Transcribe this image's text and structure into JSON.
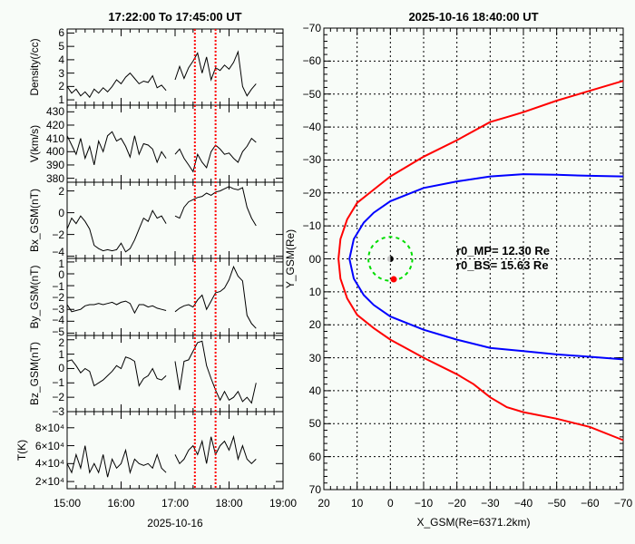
{
  "chart_data": [
    {
      "type": "line",
      "title": "17:22:00  To  17:45:00  UT",
      "xlabel": "2025-10-16",
      "x_tick_labels": [
        "15:00",
        "16:00",
        "17:00",
        "18:00",
        "19:00"
      ],
      "xlim": [
        "15:00",
        "19:00"
      ],
      "x": [
        "15:00",
        "15:05",
        "15:10",
        "15:15",
        "15:20",
        "15:25",
        "15:30",
        "15:35",
        "15:40",
        "15:45",
        "15:50",
        "15:55",
        "16:00",
        "16:05",
        "16:10",
        "16:15",
        "16:20",
        "16:25",
        "16:30",
        "16:35",
        "16:40",
        "16:45",
        "16:50",
        "16:55",
        "17:00",
        "17:05",
        "17:10",
        "17:15",
        "17:20",
        "17:25",
        "17:30",
        "17:35",
        "17:40",
        "17:45",
        "17:50",
        "17:55",
        "18:00",
        "18:05",
        "18:10",
        "18:15",
        "18:20",
        "18:25",
        "18:30"
      ],
      "markers": {
        "times": [
          "17:22",
          "17:45"
        ],
        "color": "#ff0000",
        "style": "dotted"
      },
      "panels": [
        {
          "ylabel": "Density(/cc)",
          "ylim": [
            0.6,
            6.3
          ],
          "ticks": [
            1,
            2,
            3,
            4,
            5,
            6
          ],
          "tick_labels": [
            "1",
            "2",
            "3",
            "4",
            "5",
            "6"
          ],
          "values": [
            2.0,
            1.5,
            1.8,
            1.3,
            1.6,
            1.2,
            1.8,
            1.5,
            1.9,
            1.6,
            2.0,
            2.5,
            2.2,
            2.7,
            3.0,
            2.6,
            2.2,
            2.4,
            2.3,
            2.8,
            1.9,
            2.1,
            1.7,
            null,
            2.5,
            3.5,
            2.6,
            3.4,
            3.9,
            4.5,
            3.0,
            4.2,
            2.5,
            3.4,
            3.2,
            3.6,
            3.3,
            3.8,
            4.6,
            2.0,
            1.3,
            1.8,
            2.2
          ]
        },
        {
          "ylabel": "V(km/s)",
          "ylim": [
            377,
            435
          ],
          "ticks": [
            380,
            390,
            400,
            410,
            420,
            430
          ],
          "tick_labels": [
            "380",
            "390",
            "400",
            "410",
            "420",
            "430"
          ],
          "values": [
            412,
            405,
            398,
            410,
            395,
            404,
            390,
            408,
            400,
            412,
            415,
            408,
            410,
            404,
            396,
            412,
            398,
            406,
            405,
            402,
            392,
            400,
            395,
            null,
            398,
            402,
            395,
            390,
            385,
            398,
            392,
            388,
            400,
            405,
            402,
            398,
            399,
            395,
            392,
            400,
            404,
            410,
            407
          ]
        },
        {
          "ylabel": "Bx_GSM(nT)",
          "ylim": [
            -4.2,
            2.8
          ],
          "ticks": [
            -4,
            -2,
            0,
            2
          ],
          "tick_labels": [
            "−4",
            "−2",
            "0",
            "2"
          ],
          "values": [
            -1.5,
            -0.5,
            -1.0,
            -0.3,
            -0.8,
            -1.5,
            -3.0,
            -3.3,
            -3.5,
            -3.4,
            -3.5,
            -3.4,
            -2.8,
            -3.6,
            -3.3,
            -2.5,
            -1.5,
            -0.5,
            -0.8,
            0.2,
            -0.5,
            -0.3,
            -1.0,
            null,
            -0.3,
            -0.5,
            0.5,
            1.0,
            1.2,
            1.4,
            1.5,
            1.8,
            1.6,
            1.9,
            2.0,
            2.2,
            2.4,
            2.2,
            2.1,
            2.3,
            0.5,
            -0.5,
            -1.2
          ]
        },
        {
          "ylabel": "By_GSM(nT)",
          "ylim": [
            -5.2,
            1.3
          ],
          "ticks": [
            -5,
            -4,
            -3,
            -2,
            -1,
            0,
            1
          ],
          "tick_labels": [
            "−5",
            "−4",
            "−3",
            "−2",
            "−1",
            "0",
            "1"
          ],
          "values": [
            -2.6,
            -3.2,
            -3.1,
            -3.0,
            -2.7,
            -2.6,
            -2.6,
            -2.5,
            -2.6,
            -2.5,
            -2.4,
            -2.6,
            -2.4,
            -2.3,
            -2.5,
            -3.3,
            -2.6,
            -2.6,
            -2.8,
            -2.7,
            -2.9,
            -3.0,
            -3.1,
            null,
            -3.2,
            -2.9,
            -2.7,
            -2.6,
            -2.8,
            -2.2,
            -1.8,
            -3.0,
            -2.3,
            -1.6,
            -1.5,
            -1.2,
            -0.5,
            0.6,
            -0.2,
            -0.6,
            -3.5,
            -4.2,
            -4.6
          ]
        },
        {
          "ylabel": "Bz_GSM(nT)",
          "ylim": [
            -3.0,
            2.3
          ],
          "ticks": [
            -3,
            -2,
            -1,
            0,
            1,
            2
          ],
          "tick_labels": [
            "−3",
            "−2",
            "−1",
            "0",
            "1",
            "2"
          ],
          "values": [
            0.5,
            0.6,
            0.2,
            -0.3,
            0.0,
            -0.2,
            -1.2,
            -1.0,
            -0.8,
            -0.5,
            -0.2,
            0.2,
            0.0,
            0.8,
            0.7,
            0.5,
            -1.2,
            -0.7,
            -0.5,
            0.0,
            -0.7,
            -0.8,
            -0.5,
            null,
            0.5,
            -1.5,
            0.5,
            0.6,
            1.2,
            1.8,
            1.9,
            0.2,
            -0.7,
            -1.5,
            -2.2,
            -1.6,
            -2.2,
            -2.0,
            -1.6,
            -2.3,
            -2.0,
            -2.4,
            -1.0
          ]
        },
        {
          "ylabel": "T(K)",
          "ylim": [
            12000,
            98000
          ],
          "ticks": [
            20000,
            40000,
            60000,
            80000
          ],
          "tick_labels": [
            "2×10⁴",
            "4×10⁴",
            "6×10⁴",
            "8×10⁴"
          ],
          "values": [
            40000,
            30000,
            50000,
            35000,
            60000,
            30000,
            40000,
            30000,
            50000,
            25000,
            45000,
            35000,
            40000,
            55000,
            30000,
            45000,
            40000,
            38000,
            40000,
            35000,
            50000,
            35000,
            30000,
            null,
            50000,
            40000,
            45000,
            55000,
            60000,
            50000,
            65000,
            40000,
            70000,
            50000,
            60000,
            65000,
            55000,
            70000,
            45000,
            60000,
            45000,
            40000,
            45000
          ]
        }
      ]
    },
    {
      "type": "line",
      "title": "2025-10-16  18:40:00 UT",
      "xlabel": "X_GSM(Re=6371.2km)",
      "ylabel": "Y_GSM(Re)",
      "xlim": [
        20,
        -70
      ],
      "ylim": [
        -70,
        70
      ],
      "x_tick_labels": [
        "20",
        "10",
        "0",
        "−10",
        "−20",
        "−30",
        "−40",
        "−50",
        "−60",
        "−70"
      ],
      "y_tick_labels": [
        "−70",
        "−60",
        "−50",
        "−40",
        "−30",
        "−20",
        "−10",
        "00",
        "10",
        "20",
        "30",
        "40",
        "50",
        "60",
        "70"
      ],
      "grid": true,
      "annotations": [
        {
          "text": "r0_MP= 12.30 Re",
          "color": "#0000ff"
        },
        {
          "text": "r0_BS= 15.63 Re",
          "color": "#ff0000"
        }
      ],
      "series": [
        {
          "color": "#0000ff",
          "points": [
            [
              -70,
              -25
            ],
            [
              -60,
              -25.2
            ],
            [
              -50,
              -25.5
            ],
            [
              -40,
              -25.7
            ],
            [
              -30,
              -25
            ],
            [
              -20,
              -23.5
            ],
            [
              -10,
              -21.5
            ],
            [
              0,
              -17.5
            ],
            [
              5,
              -14
            ],
            [
              8,
              -11
            ],
            [
              11,
              -6
            ],
            [
              12.3,
              0
            ],
            [
              11,
              6
            ],
            [
              8,
              11
            ],
            [
              5,
              14
            ],
            [
              0,
              17.5
            ],
            [
              -10,
              21.5
            ],
            [
              -20,
              24.5
            ],
            [
              -30,
              27
            ],
            [
              -40,
              28
            ],
            [
              -50,
              29
            ],
            [
              -60,
              29.7
            ],
            [
              -70,
              30.5
            ]
          ]
        },
        {
          "color": "#ff0000",
          "points": [
            [
              -70,
              -54
            ],
            [
              -60,
              -51
            ],
            [
              -50,
              -48
            ],
            [
              -40,
              -44.5
            ],
            [
              -35,
              -43
            ],
            [
              -30,
              -41.5
            ],
            [
              -20,
              -36
            ],
            [
              -10,
              -31
            ],
            [
              0,
              -25
            ],
            [
              5,
              -21
            ],
            [
              10,
              -17
            ],
            [
              13,
              -12
            ],
            [
              15,
              -6
            ],
            [
              15.6,
              0
            ],
            [
              15,
              6
            ],
            [
              13,
              12
            ],
            [
              10,
              17
            ],
            [
              5,
              21
            ],
            [
              0,
              24.5
            ],
            [
              -10,
              30
            ],
            [
              -20,
              35
            ],
            [
              -25,
              38
            ],
            [
              -30,
              42
            ],
            [
              -35,
              45
            ],
            [
              -40,
              46.5
            ],
            [
              -50,
              48.5
            ],
            [
              -60,
              51
            ],
            [
              -70,
              55
            ]
          ]
        }
      ],
      "earth": {
        "x": 0,
        "y": 0
      },
      "orbit_circle": {
        "radius": 6.6,
        "color": "#00dd00",
        "style": "dashed"
      },
      "spacecraft": {
        "x": -1,
        "y": 6.2,
        "color": "#ff0000"
      }
    }
  ]
}
